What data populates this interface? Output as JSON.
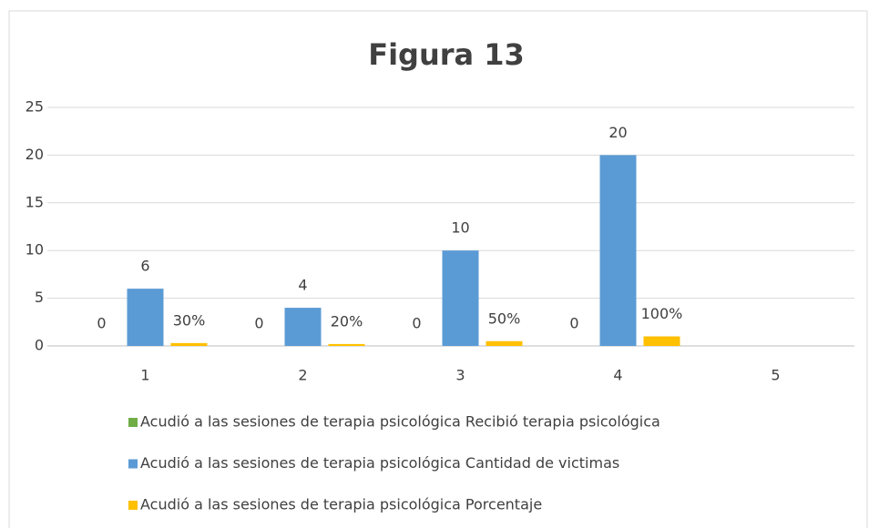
{
  "chart_data": {
    "type": "bar",
    "title": "Figura 13",
    "categories": [
      "1",
      "2",
      "3",
      "4",
      "5"
    ],
    "series": [
      {
        "name": "Acudió a las sesiones de terapia psicológica Recibió terapia psicológica",
        "color": "#70ad47",
        "values": [
          0,
          0,
          0,
          0,
          null
        ]
      },
      {
        "name": "Acudió a las sesiones de terapia psicológica Cantidad de victimas",
        "color": "#5b9bd5",
        "values": [
          6,
          4,
          10,
          20,
          null
        ]
      },
      {
        "name": "Acudió a las sesiones de terapia psicológica Porcentaje",
        "color": "#ffc000",
        "values": [
          0.3,
          0.2,
          0.5,
          1,
          null
        ],
        "value_labels": [
          "30%",
          "20%",
          "50%",
          "100%",
          null
        ]
      }
    ],
    "ylim": [
      0,
      25
    ],
    "yticks": [
      0,
      5,
      10,
      15,
      20,
      25
    ],
    "grid": true,
    "legend": "bottom"
  }
}
